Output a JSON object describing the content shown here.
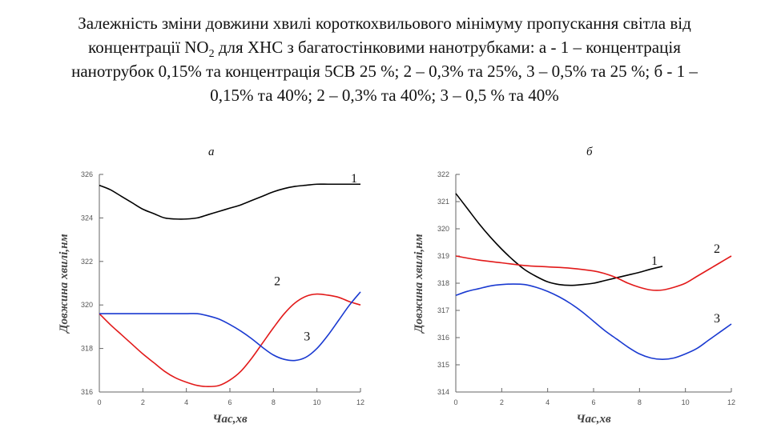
{
  "title": {
    "before_sub": "Залежність зміни довжини хвилі короткохвильового  мінімуму пропускання світла від концентрації NO",
    "sub": "2",
    "after_sub": " для ХНС з багатостінковими нанотрубками: а - 1 – концентрація нанотрубок 0,15% та концентрація 5СВ 25 %; 2 – 0,3% та 25%, 3 – 0,5% та 25 %; б -  1 – 0,15% та 40%; 2 – 0,3%  та 40%; 3 – 0,5 % та 40%"
  },
  "chart_data": [
    {
      "type": "line",
      "panel_label": "а",
      "xlabel": "Час,хв",
      "ylabel": "Довжина хвилі,нм",
      "xlim": [
        0,
        12
      ],
      "ylim": [
        316,
        326
      ],
      "xticks": [
        "0",
        "2",
        "4",
        "6",
        "8",
        "10",
        "12"
      ],
      "yticks": [
        "316",
        "318",
        "320",
        "322",
        "324",
        "326"
      ],
      "grid": false,
      "series": [
        {
          "name": "1",
          "color": "#000000",
          "x": [
            0,
            0.5,
            1,
            1.5,
            2,
            2.5,
            3,
            3.5,
            4,
            4.5,
            5,
            5.5,
            6,
            6.5,
            7,
            7.5,
            8,
            8.5,
            9,
            9.5,
            10,
            10.5,
            11,
            11.5,
            12
          ],
          "y": [
            325.5,
            325.3,
            325.0,
            324.7,
            324.4,
            324.2,
            324.0,
            323.95,
            323.95,
            324.0,
            324.15,
            324.3,
            324.45,
            324.6,
            324.8,
            325.0,
            325.2,
            325.35,
            325.45,
            325.5,
            325.55,
            325.55,
            325.55,
            325.55,
            325.55
          ]
        },
        {
          "name": "2",
          "color": "#e21a1a",
          "x": [
            0,
            0.5,
            1,
            1.5,
            2,
            2.5,
            3,
            3.5,
            4,
            4.5,
            5,
            5.5,
            6,
            6.5,
            7,
            7.5,
            8,
            8.5,
            9,
            9.5,
            10,
            10.5,
            11,
            11.5,
            12
          ],
          "y": [
            319.6,
            319.1,
            318.65,
            318.2,
            317.75,
            317.35,
            316.95,
            316.65,
            316.45,
            316.3,
            316.25,
            316.3,
            316.55,
            316.95,
            317.55,
            318.25,
            318.95,
            319.6,
            320.1,
            320.4,
            320.5,
            320.45,
            320.35,
            320.15,
            320.0
          ]
        },
        {
          "name": "3",
          "color": "#1a3ad1",
          "x": [
            0,
            1,
            2,
            3,
            3.5,
            4,
            4.5,
            5,
            5.5,
            6,
            6.5,
            7,
            7.5,
            8,
            8.5,
            9,
            9.5,
            10,
            10.5,
            11,
            11.5,
            12
          ],
          "y": [
            319.6,
            319.6,
            319.6,
            319.6,
            319.6,
            319.6,
            319.6,
            319.5,
            319.35,
            319.1,
            318.8,
            318.45,
            318.05,
            317.7,
            317.5,
            317.45,
            317.6,
            318.0,
            318.6,
            319.3,
            320.0,
            320.6
          ]
        }
      ]
    },
    {
      "type": "line",
      "panel_label": "б",
      "xlabel": "Час,хв",
      "ylabel": "Довжина хвилі,нм",
      "xlim": [
        0,
        12
      ],
      "ylim": [
        314,
        322
      ],
      "xticks": [
        "0",
        "2",
        "4",
        "6",
        "8",
        "10",
        "12"
      ],
      "yticks": [
        "314",
        "315",
        "316",
        "317",
        "318",
        "319",
        "320",
        "321",
        "322"
      ],
      "grid": false,
      "series": [
        {
          "name": "1",
          "color": "#000000",
          "x": [
            0,
            0.5,
            1,
            1.5,
            2,
            2.5,
            3,
            3.5,
            4,
            4.5,
            5,
            5.5,
            6,
            6.5,
            7,
            7.5,
            8,
            8.5,
            9
          ],
          "y": [
            321.3,
            320.75,
            320.2,
            319.7,
            319.25,
            318.85,
            318.5,
            318.25,
            318.05,
            317.95,
            317.92,
            317.95,
            318.0,
            318.1,
            318.2,
            318.3,
            318.4,
            318.52,
            318.62
          ]
        },
        {
          "name": "2",
          "color": "#e21a1a",
          "x": [
            0,
            1,
            2,
            3,
            4,
            5,
            6,
            6.5,
            7,
            7.5,
            8,
            8.5,
            9,
            9.5,
            10,
            10.5,
            11,
            11.5,
            12
          ],
          "y": [
            319.0,
            318.85,
            318.75,
            318.65,
            318.6,
            318.55,
            318.45,
            318.35,
            318.2,
            318.0,
            317.85,
            317.75,
            317.75,
            317.85,
            318.0,
            318.25,
            318.5,
            318.75,
            319.0
          ]
        },
        {
          "name": "3",
          "color": "#1a3ad1",
          "x": [
            0,
            0.5,
            1,
            1.5,
            2,
            2.5,
            3,
            3.5,
            4,
            4.5,
            5,
            5.5,
            6,
            6.5,
            7,
            7.5,
            8,
            8.5,
            9,
            9.5,
            10,
            10.5,
            11,
            11.5,
            12
          ],
          "y": [
            317.55,
            317.7,
            317.8,
            317.9,
            317.95,
            317.97,
            317.95,
            317.85,
            317.7,
            317.5,
            317.25,
            316.95,
            316.6,
            316.25,
            315.95,
            315.65,
            315.4,
            315.25,
            315.2,
            315.25,
            315.4,
            315.6,
            315.9,
            316.2,
            316.5
          ]
        }
      ]
    }
  ]
}
